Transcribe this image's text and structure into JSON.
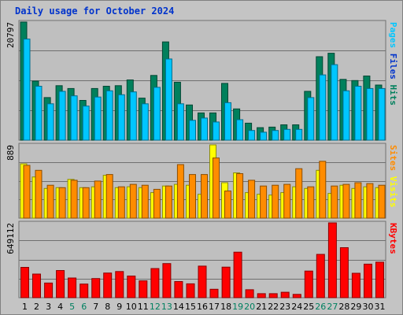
{
  "chart_data": [
    {
      "type": "bar",
      "title": "Daily usage for October 2024",
      "ymax_label": "20797",
      "ylim": [
        0,
        20797
      ],
      "grid": true,
      "categories": [
        "1",
        "2",
        "3",
        "4",
        "5",
        "6",
        "7",
        "8",
        "9",
        "10",
        "11",
        "12",
        "13",
        "14",
        "15",
        "16",
        "17",
        "18",
        "19",
        "20",
        "21",
        "22",
        "23",
        "24",
        "25",
        "26",
        "27",
        "28",
        "29",
        "30",
        "31"
      ],
      "weekend_days": [
        "5",
        "6",
        "12",
        "13",
        "19",
        "20",
        "26",
        "27"
      ],
      "series": [
        {
          "name": "Hits",
          "color": "#00805c",
          "values": [
            20797,
            10400,
            7500,
            9600,
            9100,
            7000,
            9100,
            9500,
            9600,
            10600,
            7400,
            11400,
            17300,
            10200,
            6200,
            4800,
            4800,
            10000,
            5500,
            3000,
            2200,
            2300,
            2700,
            2700,
            8600,
            14700,
            15300,
            10700,
            10500,
            11300,
            9700
          ]
        },
        {
          "name": "Files",
          "color": "#00c6ff",
          "values": [
            17800,
            9500,
            6400,
            8600,
            7800,
            6000,
            7600,
            8700,
            8000,
            8500,
            6400,
            9300,
            14300,
            6400,
            3500,
            3900,
            3200,
            6600,
            3600,
            1700,
            1400,
            1700,
            1900,
            1900,
            7500,
            11500,
            13300,
            8700,
            9500,
            9100,
            9100
          ]
        },
        {
          "name": "Pages",
          "color": "#00c6ff",
          "values": [
            0,
            0,
            0,
            0,
            0,
            0,
            0,
            0,
            0,
            0,
            0,
            0,
            0,
            0,
            0,
            0,
            0,
            0,
            0,
            0,
            0,
            0,
            0,
            0,
            0,
            0,
            0,
            0,
            0,
            0,
            0
          ]
        }
      ],
      "right_label": [
        "Pages",
        "/",
        "Files",
        "/",
        "Hits"
      ],
      "right_label_colors": [
        "#00c6ff",
        "#c4c4c4",
        "#0033cc",
        "#c4c4c4",
        "#00805c"
      ]
    },
    {
      "type": "bar",
      "ymax_label": "889",
      "ylim": [
        0,
        889
      ],
      "grid": true,
      "series": [
        {
          "name": "Visits",
          "color": "#ffff00",
          "values": [
            660,
            500,
            360,
            370,
            470,
            370,
            380,
            520,
            370,
            380,
            370,
            310,
            390,
            410,
            400,
            290,
            889,
            430,
            550,
            310,
            290,
            280,
            310,
            380,
            360,
            580,
            300,
            400,
            360,
            380,
            370
          ]
        },
        {
          "name": "Sites",
          "color": "#ff8c00",
          "values": [
            640,
            580,
            400,
            370,
            460,
            370,
            450,
            530,
            380,
            410,
            400,
            350,
            390,
            650,
            530,
            530,
            730,
            330,
            540,
            460,
            390,
            400,
            410,
            600,
            380,
            690,
            390,
            410,
            430,
            420,
            400
          ]
        }
      ],
      "right_label": [
        "Sites",
        "/",
        "Visits"
      ],
      "right_label_colors": [
        "#ff8c00",
        "#c4c4c4",
        "#ffff00"
      ]
    },
    {
      "type": "bar",
      "ymax_label": "649112",
      "ylim": [
        0,
        649112
      ],
      "grid": true,
      "series": [
        {
          "name": "KBytes",
          "color": "#ff0000",
          "values": [
            263000,
            205000,
            127000,
            236000,
            171000,
            118000,
            166000,
            214000,
            227000,
            188000,
            146000,
            253000,
            296000,
            140000,
            120000,
            274000,
            73000,
            265000,
            395000,
            69000,
            35000,
            35000,
            47000,
            29000,
            231000,
            376000,
            649112,
            434000,
            212000,
            291000,
            308000
          ]
        }
      ],
      "right_label": [
        "KBytes"
      ],
      "right_label_colors": [
        "#ff0000"
      ]
    }
  ]
}
